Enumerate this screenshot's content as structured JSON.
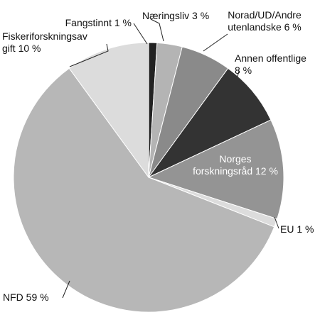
{
  "chart_data": {
    "type": "pie",
    "title": "",
    "start_angle_deg": 0,
    "direction": "clockwise",
    "slices": [
      {
        "label": "Fangstinnt 1 %",
        "label_lines": [
          "Fangstinnt 1 %"
        ],
        "value": 1,
        "color": "#222222",
        "label_style": "outside"
      },
      {
        "label": "Næringsliv 3 %",
        "label_lines": [
          "Næringsliv 3 %"
        ],
        "value": 3,
        "color": "#b4b4b4",
        "label_style": "outside"
      },
      {
        "label": "Norad/UD/Andre utenlandske 6 %",
        "label_lines": [
          "Norad/UD/Andre",
          "utenlandske 6 %"
        ],
        "value": 6,
        "color": "#8a8a8a",
        "label_style": "outside"
      },
      {
        "label": "Annen offentlige 8 %",
        "label_lines": [
          "Annen offentlige",
          "8 %"
        ],
        "value": 8,
        "color": "#333333",
        "label_style": "outside"
      },
      {
        "label": "Norges forskningsråd 12 %",
        "label_lines": [
          "Norges",
          "forskningsråd 12 %"
        ],
        "value": 12,
        "color": "#949494",
        "label_style": "inside"
      },
      {
        "label": "EU 1 %",
        "label_lines": [
          "EU 1 %"
        ],
        "value": 1,
        "color": "#dcdcdc",
        "label_style": "outside"
      },
      {
        "label": "NFD 59 %",
        "label_lines": [
          "NFD 59 %"
        ],
        "value": 59,
        "color": "#b7b7b7",
        "label_style": "outside"
      },
      {
        "label": "Fiskeriforskningsavgift 10 %",
        "label_lines": [
          "Fiskeriforskningsav",
          "gift 10 %"
        ],
        "value": 10,
        "color": "#dcdcdc",
        "label_style": "outside"
      }
    ]
  }
}
